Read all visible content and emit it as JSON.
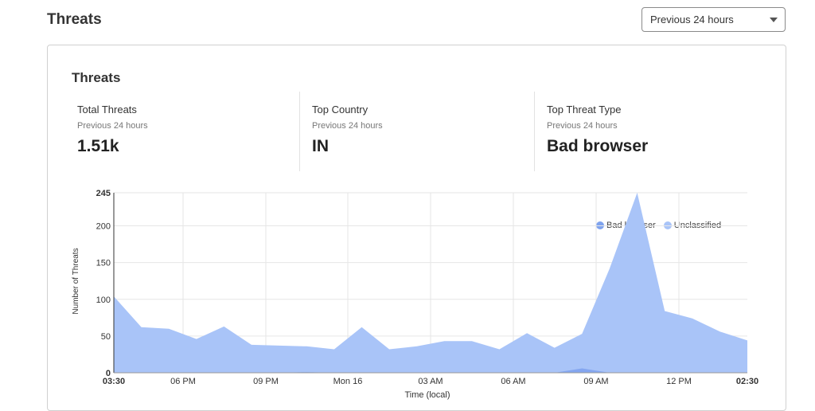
{
  "header": {
    "title": "Threats",
    "range_select": "Previous 24 hours"
  },
  "card": {
    "title": "Threats",
    "stats": [
      {
        "label": "Total Threats",
        "sub": "Previous 24 hours",
        "value": "1.51k"
      },
      {
        "label": "Top Country",
        "sub": "Previous 24 hours",
        "value": "IN"
      },
      {
        "label": "Top Threat Type",
        "sub": "Previous 24 hours",
        "value": "Bad browser"
      }
    ]
  },
  "colors": {
    "bad_browser": "#7fa3ee",
    "unclassified": "#a9c4f8"
  },
  "chart_data": {
    "type": "area",
    "xlabel": "Time (local)",
    "ylabel": "Number of Threats",
    "ylim": [
      0,
      245
    ],
    "yticks": [
      0,
      50,
      100,
      150,
      200,
      245
    ],
    "xtick_labels": [
      "03:30",
      "06 PM",
      "09 PM",
      "Mon 16",
      "03 AM",
      "06 AM",
      "09 AM",
      "12 PM",
      "02:30"
    ],
    "grid": true,
    "legend": "top-right",
    "series": [
      {
        "name": "Unclassified",
        "values": [
          104,
          62,
          60,
          46,
          63,
          38,
          37,
          36,
          32,
          62,
          32,
          36,
          43,
          43,
          32,
          54,
          34,
          53,
          142,
          245,
          84,
          74,
          56,
          44
        ]
      },
      {
        "name": "Bad browser",
        "values": [
          0,
          0,
          0,
          0,
          0,
          0,
          0,
          1,
          0,
          0,
          0,
          0,
          0,
          0,
          0,
          0,
          0,
          6,
          0,
          0,
          0,
          0,
          0,
          0
        ]
      }
    ]
  }
}
